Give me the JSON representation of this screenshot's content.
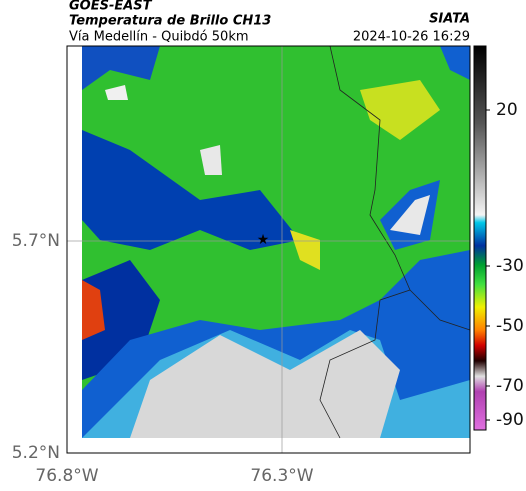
{
  "header": {
    "source": "GOES-EAST",
    "title": "Temperatura de Brillo CH13",
    "subtitle": "Vía Medellín - Quibdó 50km",
    "org": "SIATA",
    "timestamp": "2024-10-26 16:29"
  },
  "map": {
    "lat_labels": [
      "5.7°N",
      "5.2°N"
    ],
    "lon_labels": [
      "76.8°W",
      "76.3°W"
    ]
  },
  "colorbar": {
    "labels": [
      "20",
      "-30",
      "-50",
      "-70",
      "-90"
    ]
  }
}
